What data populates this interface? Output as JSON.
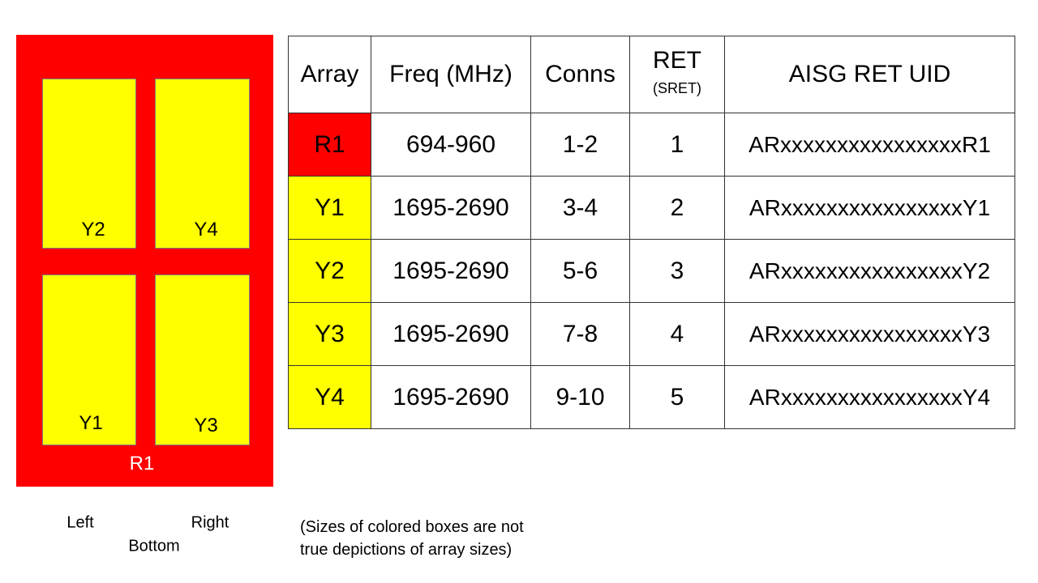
{
  "diagram": {
    "outer_label": "R1",
    "boxes": [
      "Y2",
      "Y4",
      "Y1",
      "Y3"
    ],
    "colors": {
      "red": "#ff0000",
      "yellow": "#ffff00"
    }
  },
  "orientation": {
    "left": "Left",
    "right": "Right",
    "bottom": "Bottom"
  },
  "note": [
    "(Sizes of colored boxes are not",
    "true depictions of array sizes)"
  ],
  "table": {
    "headers": [
      "Array",
      "Freq (MHz)",
      "Conns",
      "RET",
      "AISG RET UID"
    ],
    "ret_sub": "(SRET)",
    "rows": [
      {
        "array": "R1",
        "freq": "694-960",
        "conns": "1-2",
        "ret": "1",
        "uid": "ARxxxxxxxxxxxxxxxxR1",
        "color": "#ff0000"
      },
      {
        "array": "Y1",
        "freq": "1695-2690",
        "conns": "3-4",
        "ret": "2",
        "uid": "ARxxxxxxxxxxxxxxxxY1",
        "color": "#ffff00"
      },
      {
        "array": "Y2",
        "freq": "1695-2690",
        "conns": "5-6",
        "ret": "3",
        "uid": "ARxxxxxxxxxxxxxxxxY2",
        "color": "#ffff00"
      },
      {
        "array": "Y3",
        "freq": "1695-2690",
        "conns": "7-8",
        "ret": "4",
        "uid": "ARxxxxxxxxxxxxxxxxY3",
        "color": "#ffff00"
      },
      {
        "array": "Y4",
        "freq": "1695-2690",
        "conns": "9-10",
        "ret": "5",
        "uid": "ARxxxxxxxxxxxxxxxxY4",
        "color": "#ffff00"
      }
    ]
  }
}
